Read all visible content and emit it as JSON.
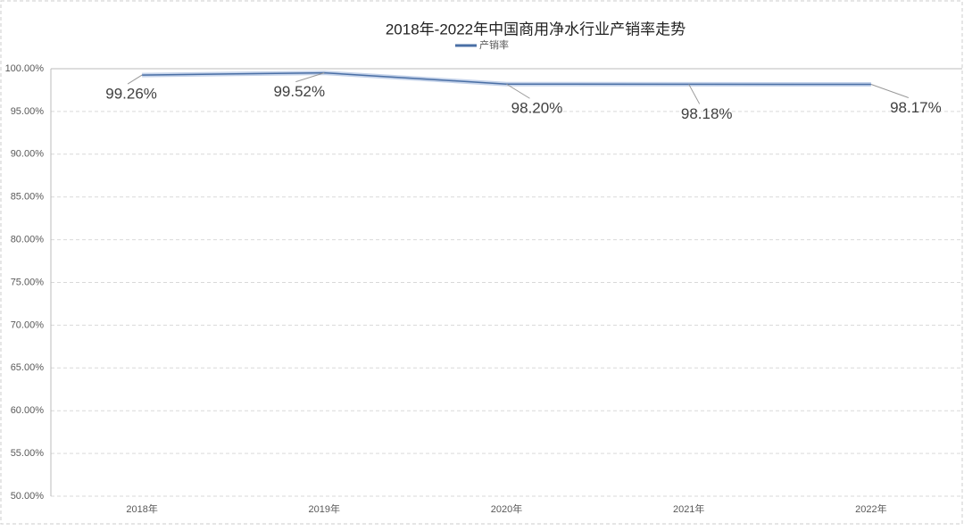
{
  "chart_data": {
    "type": "line",
    "title": "2018年-2022年中国商用净水行业产销率走势",
    "categories": [
      "2018年",
      "2019年",
      "2020年",
      "2021年",
      "2022年"
    ],
    "series": [
      {
        "name": "产销率",
        "color": "#4a6fa5",
        "values": [
          99.26,
          99.52,
          98.2,
          98.18,
          98.17
        ],
        "value_labels": [
          "99.26%",
          "99.52%",
          "98.20%",
          "98.18%",
          "98.17%"
        ]
      }
    ],
    "ylim": [
      50,
      100
    ],
    "yticks": [
      {
        "value": 50,
        "label": "50.00%"
      },
      {
        "value": 55,
        "label": "55.00%"
      },
      {
        "value": 60,
        "label": "60.00%"
      },
      {
        "value": 65,
        "label": "65.00%"
      },
      {
        "value": 70,
        "label": "70.00%"
      },
      {
        "value": 75,
        "label": "75.00%"
      },
      {
        "value": 80,
        "label": "80.00%"
      },
      {
        "value": 85,
        "label": "85.00%"
      },
      {
        "value": 90,
        "label": "90.00%"
      },
      {
        "value": 95,
        "label": "95.00%"
      },
      {
        "value": 100,
        "label": "100.00%"
      }
    ],
    "grid": true,
    "legend": "top"
  }
}
